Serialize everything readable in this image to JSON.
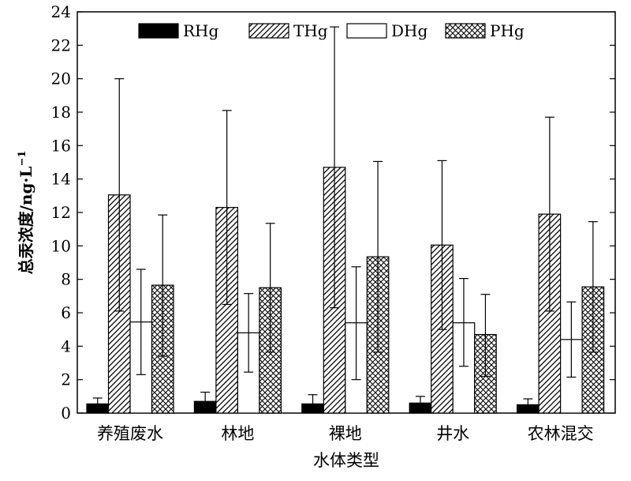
{
  "chart_data": {
    "type": "bar",
    "xlabel": "水体类型",
    "ylabel": "总汞浓度/ng·L",
    "ylabel_superscript": "−1",
    "ylim": [
      0,
      24
    ],
    "yticks": [
      "0",
      "2",
      "4",
      "6",
      "8",
      "10",
      "12",
      "14",
      "16",
      "18",
      "20",
      "22",
      "24"
    ],
    "legend_position": "top",
    "grid": false,
    "categories": [
      "养殖废水",
      "林地",
      "裸地",
      "井水",
      "农林混交"
    ],
    "series": [
      {
        "name": "RHg",
        "pattern": "solid",
        "values": [
          0.55,
          0.7,
          0.55,
          0.6,
          0.5
        ],
        "err_high": [
          0.9,
          1.25,
          1.1,
          1.0,
          0.85
        ]
      },
      {
        "name": "THg",
        "pattern": "diagonal",
        "values": [
          13.05,
          12.3,
          14.7,
          10.05,
          11.9
        ],
        "err_low": [
          6.1,
          6.5,
          6.3,
          5.0,
          6.1
        ],
        "err_high": [
          20.0,
          18.1,
          23.1,
          15.1,
          17.7
        ]
      },
      {
        "name": "DHg",
        "pattern": "empty",
        "values": [
          5.45,
          4.8,
          5.4,
          5.4,
          4.4
        ],
        "err_low": [
          2.3,
          2.45,
          2.0,
          2.8,
          2.15
        ],
        "err_high": [
          8.6,
          7.15,
          8.75,
          8.05,
          6.65
        ]
      },
      {
        "name": "PHg",
        "pattern": "crosshatch",
        "values": [
          7.65,
          7.5,
          9.35,
          4.7,
          7.55
        ],
        "err_low": [
          3.4,
          3.65,
          3.65,
          2.2,
          3.65
        ],
        "err_high": [
          11.85,
          11.35,
          15.05,
          7.1,
          11.45
        ]
      }
    ]
  }
}
